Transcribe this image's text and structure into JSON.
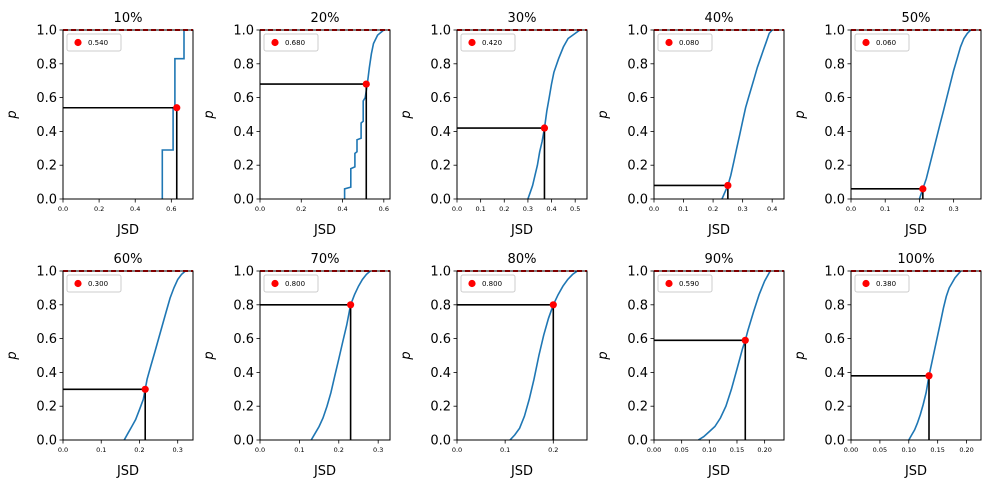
{
  "colors": {
    "curve": "#1f77b4",
    "marker": "#ff0000",
    "guide": "#000000",
    "reference_line": "#ff0000",
    "axes": "#000000"
  },
  "chart_data": [
    {
      "type": "line",
      "title": "10%",
      "xlabel": "JSD",
      "ylabel": "p",
      "xlim": [
        0,
        0.72
      ],
      "ylim": [
        0,
        1
      ],
      "xticks": [
        "0.0",
        "0.2",
        "0.4",
        "0.6"
      ],
      "xtick_values": [
        0,
        0.2,
        0.4,
        0.6
      ],
      "yticks": [
        "0.0",
        "0.2",
        "0.4",
        "0.6",
        "0.8",
        "1.0"
      ],
      "ytick_values": [
        0,
        0.2,
        0.4,
        0.6,
        0.8,
        1.0
      ],
      "reference_y": 1.0,
      "marker": {
        "x": 0.63,
        "y": 0.54,
        "label": "0.540"
      },
      "legend_position": "upper left",
      "curve": {
        "x": [
          0.55,
          0.55,
          0.61,
          0.61,
          0.62,
          0.62,
          0.62,
          0.62,
          0.67,
          0.67,
          0.69
        ],
        "y": [
          0.0,
          0.29,
          0.29,
          0.54,
          0.54,
          0.82,
          0.82,
          0.83,
          0.83,
          1.0,
          1.0
        ]
      }
    },
    {
      "type": "line",
      "title": "20%",
      "xlabel": "JSD",
      "ylabel": "p",
      "xlim": [
        0,
        0.63
      ],
      "ylim": [
        0,
        1
      ],
      "xticks": [
        "0.0",
        "0.2",
        "0.4",
        "0.6"
      ],
      "xtick_values": [
        0,
        0.2,
        0.4,
        0.6
      ],
      "yticks": [
        "0.0",
        "0.2",
        "0.4",
        "0.6",
        "0.8",
        "1.0"
      ],
      "ytick_values": [
        0,
        0.2,
        0.4,
        0.6,
        0.8,
        1.0
      ],
      "reference_y": 1.0,
      "marker": {
        "x": 0.515,
        "y": 0.68,
        "label": "0.680"
      },
      "legend_position": "upper left",
      "curve": {
        "x": [
          0.41,
          0.41,
          0.44,
          0.44,
          0.46,
          0.46,
          0.47,
          0.47,
          0.49,
          0.49,
          0.5,
          0.5,
          0.51,
          0.52,
          0.53,
          0.54,
          0.55,
          0.57,
          0.59,
          0.6
        ],
        "y": [
          0.0,
          0.06,
          0.07,
          0.18,
          0.19,
          0.27,
          0.28,
          0.35,
          0.36,
          0.45,
          0.46,
          0.58,
          0.6,
          0.68,
          0.78,
          0.86,
          0.92,
          0.97,
          0.99,
          1.0
        ]
      }
    },
    {
      "type": "line",
      "title": "30%",
      "xlabel": "JSD",
      "ylabel": "p",
      "xlim": [
        0,
        0.55
      ],
      "ylim": [
        0,
        1
      ],
      "xticks": [
        "0.0",
        "0.1",
        "0.2",
        "0.3",
        "0.4",
        "0.5"
      ],
      "xtick_values": [
        0,
        0.1,
        0.2,
        0.3,
        0.4,
        0.5
      ],
      "yticks": [
        "0.0",
        "0.2",
        "0.4",
        "0.6",
        "0.8",
        "1.0"
      ],
      "ytick_values": [
        0,
        0.2,
        0.4,
        0.6,
        0.8,
        1.0
      ],
      "reference_y": 1.0,
      "marker": {
        "x": 0.37,
        "y": 0.42,
        "label": "0.420"
      },
      "legend_position": "upper left",
      "curve": {
        "x": [
          0.3,
          0.31,
          0.32,
          0.33,
          0.34,
          0.35,
          0.36,
          0.37,
          0.38,
          0.39,
          0.4,
          0.41,
          0.43,
          0.45,
          0.47,
          0.5,
          0.52
        ],
        "y": [
          0.0,
          0.04,
          0.08,
          0.14,
          0.2,
          0.28,
          0.34,
          0.42,
          0.52,
          0.6,
          0.68,
          0.75,
          0.83,
          0.9,
          0.95,
          0.98,
          1.0
        ]
      }
    },
    {
      "type": "line",
      "title": "40%",
      "xlabel": "JSD",
      "ylabel": "p",
      "xlim": [
        0,
        0.44
      ],
      "ylim": [
        0,
        1
      ],
      "xticks": [
        "0.0",
        "0.1",
        "0.2",
        "0.3",
        "0.4"
      ],
      "xtick_values": [
        0,
        0.1,
        0.2,
        0.3,
        0.4
      ],
      "yticks": [
        "0.0",
        "0.2",
        "0.4",
        "0.6",
        "0.8",
        "1.0"
      ],
      "ytick_values": [
        0,
        0.2,
        0.4,
        0.6,
        0.8,
        1.0
      ],
      "reference_y": 1.0,
      "marker": {
        "x": 0.25,
        "y": 0.08,
        "label": "0.080"
      },
      "legend_position": "upper left",
      "curve": {
        "x": [
          0.23,
          0.24,
          0.25,
          0.26,
          0.27,
          0.28,
          0.29,
          0.3,
          0.31,
          0.32,
          0.33,
          0.34,
          0.35,
          0.36,
          0.37,
          0.38,
          0.39,
          0.4
        ],
        "y": [
          0.0,
          0.04,
          0.08,
          0.14,
          0.22,
          0.3,
          0.38,
          0.46,
          0.54,
          0.6,
          0.66,
          0.72,
          0.78,
          0.83,
          0.88,
          0.93,
          0.98,
          1.0
        ]
      }
    },
    {
      "type": "line",
      "title": "50%",
      "xlabel": "JSD",
      "ylabel": "p",
      "xlim": [
        0,
        0.38
      ],
      "ylim": [
        0,
        1
      ],
      "xticks": [
        "0.0",
        "0.1",
        "0.2",
        "0.3"
      ],
      "xtick_values": [
        0,
        0.1,
        0.2,
        0.3
      ],
      "yticks": [
        "0.0",
        "0.2",
        "0.4",
        "0.6",
        "0.8",
        "1.0"
      ],
      "ytick_values": [
        0,
        0.2,
        0.4,
        0.6,
        0.8,
        1.0
      ],
      "reference_y": 1.0,
      "marker": {
        "x": 0.21,
        "y": 0.06,
        "label": "0.060"
      },
      "legend_position": "upper left",
      "curve": {
        "x": [
          0.2,
          0.21,
          0.22,
          0.23,
          0.24,
          0.25,
          0.26,
          0.27,
          0.28,
          0.29,
          0.3,
          0.31,
          0.32,
          0.33,
          0.34,
          0.35
        ],
        "y": [
          0.0,
          0.06,
          0.12,
          0.2,
          0.28,
          0.36,
          0.44,
          0.52,
          0.6,
          0.68,
          0.76,
          0.83,
          0.9,
          0.95,
          0.98,
          1.0
        ]
      }
    },
    {
      "type": "line",
      "title": "60%",
      "xlabel": "JSD",
      "ylabel": "p",
      "xlim": [
        0,
        0.34
      ],
      "ylim": [
        0,
        1
      ],
      "xticks": [
        "0.0",
        "0.1",
        "0.2",
        "0.3"
      ],
      "xtick_values": [
        0,
        0.1,
        0.2,
        0.3
      ],
      "yticks": [
        "0.0",
        "0.2",
        "0.4",
        "0.6",
        "0.8",
        "1.0"
      ],
      "ytick_values": [
        0,
        0.2,
        0.4,
        0.6,
        0.8,
        1.0
      ],
      "reference_y": 1.0,
      "marker": {
        "x": 0.215,
        "y": 0.3,
        "label": "0.300"
      },
      "legend_position": "upper left",
      "curve": {
        "x": [
          0.16,
          0.17,
          0.18,
          0.19,
          0.2,
          0.21,
          0.215,
          0.22,
          0.23,
          0.24,
          0.25,
          0.26,
          0.27,
          0.28,
          0.29,
          0.3,
          0.31,
          0.32
        ],
        "y": [
          0.0,
          0.04,
          0.08,
          0.12,
          0.18,
          0.24,
          0.3,
          0.36,
          0.44,
          0.52,
          0.6,
          0.68,
          0.76,
          0.84,
          0.9,
          0.95,
          0.98,
          1.0
        ]
      }
    },
    {
      "type": "line",
      "title": "70%",
      "xlabel": "JSD",
      "ylabel": "p",
      "xlim": [
        0,
        0.33
      ],
      "ylim": [
        0,
        1
      ],
      "xticks": [
        "0.0",
        "0.1",
        "0.2",
        "0.3"
      ],
      "xtick_values": [
        0,
        0.1,
        0.2,
        0.3
      ],
      "yticks": [
        "0.0",
        "0.2",
        "0.4",
        "0.6",
        "0.8",
        "1.0"
      ],
      "ytick_values": [
        0,
        0.2,
        0.4,
        0.6,
        0.8,
        1.0
      ],
      "reference_y": 1.0,
      "marker": {
        "x": 0.23,
        "y": 0.8,
        "label": "0.800"
      },
      "legend_position": "upper left",
      "curve": {
        "x": [
          0.13,
          0.14,
          0.15,
          0.16,
          0.17,
          0.18,
          0.19,
          0.2,
          0.21,
          0.22,
          0.23,
          0.24,
          0.25,
          0.26,
          0.27,
          0.28
        ],
        "y": [
          0.0,
          0.04,
          0.08,
          0.13,
          0.2,
          0.28,
          0.38,
          0.48,
          0.58,
          0.68,
          0.8,
          0.86,
          0.91,
          0.95,
          0.98,
          1.0
        ]
      }
    },
    {
      "type": "line",
      "title": "80%",
      "xlabel": "JSD",
      "ylabel": "p",
      "xlim": [
        0,
        0.27
      ],
      "ylim": [
        0,
        1
      ],
      "xticks": [
        "0.0",
        "0.1",
        "0.2"
      ],
      "xtick_values": [
        0,
        0.1,
        0.2
      ],
      "yticks": [
        "0.0",
        "0.2",
        "0.4",
        "0.6",
        "0.8",
        "1.0"
      ],
      "ytick_values": [
        0,
        0.2,
        0.4,
        0.6,
        0.8,
        1.0
      ],
      "reference_y": 1.0,
      "marker": {
        "x": 0.2,
        "y": 0.8,
        "label": "0.800"
      },
      "legend_position": "upper left",
      "curve": {
        "x": [
          0.11,
          0.12,
          0.13,
          0.14,
          0.15,
          0.16,
          0.17,
          0.18,
          0.19,
          0.2,
          0.21,
          0.22,
          0.23,
          0.24,
          0.25
        ],
        "y": [
          0.0,
          0.03,
          0.07,
          0.14,
          0.24,
          0.36,
          0.5,
          0.62,
          0.72,
          0.8,
          0.86,
          0.91,
          0.95,
          0.98,
          1.0
        ]
      }
    },
    {
      "type": "line",
      "title": "90%",
      "xlabel": "JSD",
      "ylabel": "p",
      "xlim": [
        0,
        0.235
      ],
      "ylim": [
        0,
        1
      ],
      "xticks": [
        "0.00",
        "0.05",
        "0.10",
        "0.15",
        "0.20"
      ],
      "xtick_values": [
        0,
        0.05,
        0.1,
        0.15,
        0.2
      ],
      "yticks": [
        "0.0",
        "0.2",
        "0.4",
        "0.6",
        "0.8",
        "1.0"
      ],
      "ytick_values": [
        0,
        0.2,
        0.4,
        0.6,
        0.8,
        1.0
      ],
      "reference_y": 1.0,
      "marker": {
        "x": 0.165,
        "y": 0.59,
        "label": "0.590"
      },
      "legend_position": "upper left",
      "curve": {
        "x": [
          0.08,
          0.09,
          0.1,
          0.11,
          0.12,
          0.13,
          0.14,
          0.15,
          0.16,
          0.165,
          0.17,
          0.18,
          0.19,
          0.2,
          0.21
        ],
        "y": [
          0.0,
          0.02,
          0.05,
          0.08,
          0.13,
          0.2,
          0.3,
          0.42,
          0.54,
          0.59,
          0.65,
          0.76,
          0.86,
          0.94,
          1.0
        ]
      }
    },
    {
      "type": "line",
      "title": "100%",
      "xlabel": "JSD",
      "ylabel": "p",
      "xlim": [
        0,
        0.225
      ],
      "ylim": [
        0,
        1
      ],
      "xticks": [
        "0.00",
        "0.05",
        "0.10",
        "0.15",
        "0.20"
      ],
      "xtick_values": [
        0,
        0.05,
        0.1,
        0.15,
        0.2
      ],
      "yticks": [
        "0.0",
        "0.2",
        "0.4",
        "0.6",
        "0.8",
        "1.0"
      ],
      "ytick_values": [
        0,
        0.2,
        0.4,
        0.6,
        0.8,
        1.0
      ],
      "reference_y": 1.0,
      "marker": {
        "x": 0.135,
        "y": 0.38,
        "label": "0.380"
      },
      "legend_position": "upper left",
      "curve": {
        "x": [
          0.1,
          0.105,
          0.11,
          0.115,
          0.12,
          0.125,
          0.13,
          0.135,
          0.14,
          0.145,
          0.15,
          0.155,
          0.16,
          0.165,
          0.17,
          0.18,
          0.19
        ],
        "y": [
          0.0,
          0.03,
          0.06,
          0.1,
          0.15,
          0.21,
          0.28,
          0.38,
          0.46,
          0.54,
          0.62,
          0.7,
          0.78,
          0.85,
          0.9,
          0.96,
          1.0
        ]
      }
    }
  ]
}
